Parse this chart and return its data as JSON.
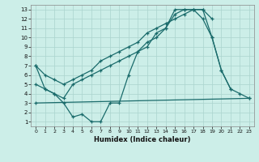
{
  "xlabel": "Humidex (Indice chaleur)",
  "background_color": "#cceee8",
  "grid_color": "#aad4ce",
  "line_color": "#1a6b6b",
  "xlim": [
    -0.5,
    23.5
  ],
  "ylim": [
    0.5,
    13.5
  ],
  "xticks": [
    0,
    1,
    2,
    3,
    4,
    5,
    6,
    7,
    8,
    9,
    10,
    11,
    12,
    13,
    14,
    15,
    16,
    17,
    18,
    19,
    20,
    21,
    22,
    23
  ],
  "yticks": [
    1,
    2,
    3,
    4,
    5,
    6,
    7,
    8,
    9,
    10,
    11,
    12,
    13
  ],
  "line1_x": [
    0,
    1,
    2,
    3,
    4,
    5,
    6,
    7,
    8,
    9,
    10,
    11,
    12,
    13,
    14,
    15,
    16,
    17,
    18,
    19,
    20,
    21
  ],
  "line1_y": [
    7,
    4.5,
    4,
    3,
    1.5,
    1.8,
    1,
    1,
    3,
    3,
    6,
    8.5,
    9,
    10.5,
    11,
    13,
    13,
    13,
    13,
    10,
    6.5,
    4.5
  ],
  "line2_x": [
    0,
    1,
    2,
    3,
    4,
    5,
    6,
    7,
    8,
    9,
    10,
    11,
    12,
    13,
    14,
    15,
    16,
    17,
    18,
    19
  ],
  "line2_y": [
    5,
    4.5,
    4,
    3.5,
    5,
    5.5,
    6,
    6.5,
    7,
    7.5,
    8,
    8.5,
    9.5,
    10,
    11,
    12.5,
    13,
    13,
    13,
    12
  ],
  "line3_x": [
    0,
    23
  ],
  "line3_y": [
    3,
    3.5
  ],
  "line4_x": [
    0,
    1,
    2,
    3,
    4,
    5,
    6,
    7,
    8,
    9,
    10,
    11,
    12,
    13,
    14,
    15,
    16,
    17,
    18,
    19,
    20,
    21,
    22,
    23
  ],
  "line4_y": [
    7,
    6,
    5.5,
    5,
    5.5,
    6,
    6.5,
    7.5,
    8,
    8.5,
    9,
    9.5,
    10.5,
    11,
    11.5,
    12,
    12.5,
    13,
    12,
    10,
    6.5,
    4.5,
    4,
    3.5
  ]
}
